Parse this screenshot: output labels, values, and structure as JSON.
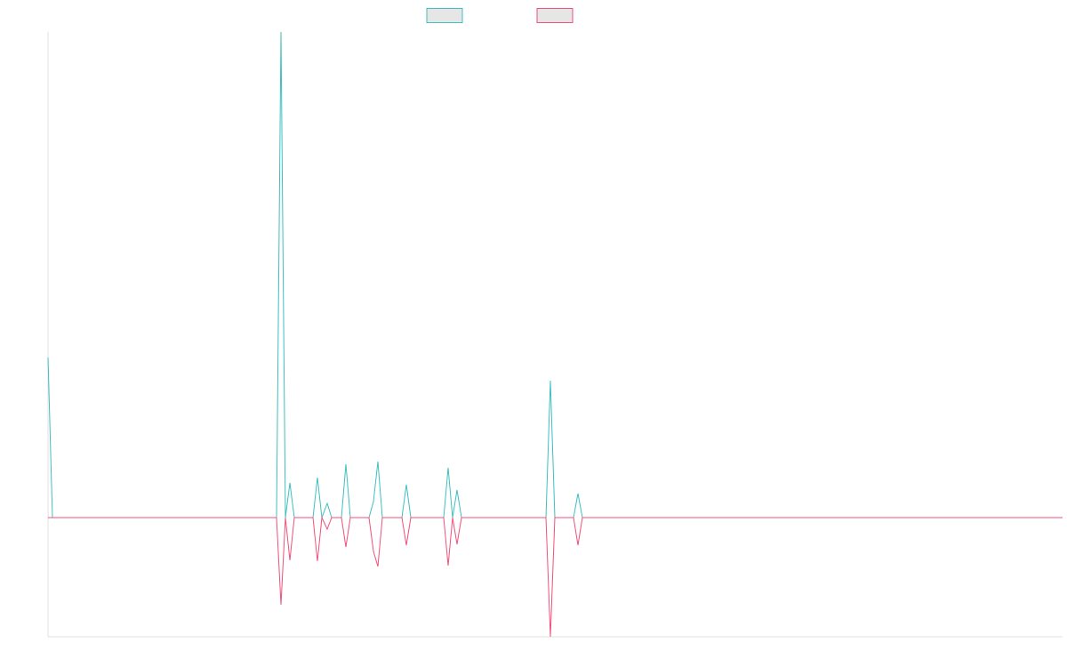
{
  "chart_data": {
    "type": "line",
    "xlim": [
      0,
      1141
    ],
    "ylim": [
      -1.34,
      5.46
    ],
    "series": [
      {
        "color": "#3fbfbf",
        "x": [
          0,
          5,
          257,
          262,
          267,
          272,
          277,
          298,
          303,
          308,
          314,
          319,
          330,
          335,
          340,
          361,
          366,
          371,
          376,
          398,
          403,
          408,
          445,
          450,
          455,
          460,
          465,
          560,
          565,
          570,
          591,
          596,
          601,
          1141
        ],
        "values": [
          1.8,
          0,
          0,
          5.46,
          0,
          0.39,
          0,
          0,
          0.45,
          0,
          0.16,
          0,
          0,
          0.6,
          0,
          0,
          0.18,
          0.63,
          0,
          0,
          0.37,
          0,
          0,
          0.56,
          0,
          0.31,
          0,
          0,
          1.54,
          0,
          0,
          0.27,
          0,
          0
        ]
      },
      {
        "color": "#f0507a",
        "x": [
          0,
          257,
          262,
          267,
          272,
          277,
          298,
          303,
          308,
          314,
          319,
          330,
          335,
          340,
          361,
          366,
          371,
          376,
          398,
          403,
          408,
          445,
          450,
          455,
          460,
          465,
          560,
          565,
          570,
          591,
          596,
          601,
          1141
        ],
        "values": [
          0,
          0,
          -0.98,
          0,
          -0.48,
          0,
          0,
          -0.49,
          0,
          -0.13,
          0,
          0,
          -0.33,
          0,
          0,
          -0.38,
          -0.55,
          0,
          0,
          -0.31,
          0,
          0,
          -0.54,
          0,
          -0.3,
          0,
          0,
          -1.34,
          0,
          0,
          -0.31,
          0,
          0
        ]
      }
    ]
  }
}
